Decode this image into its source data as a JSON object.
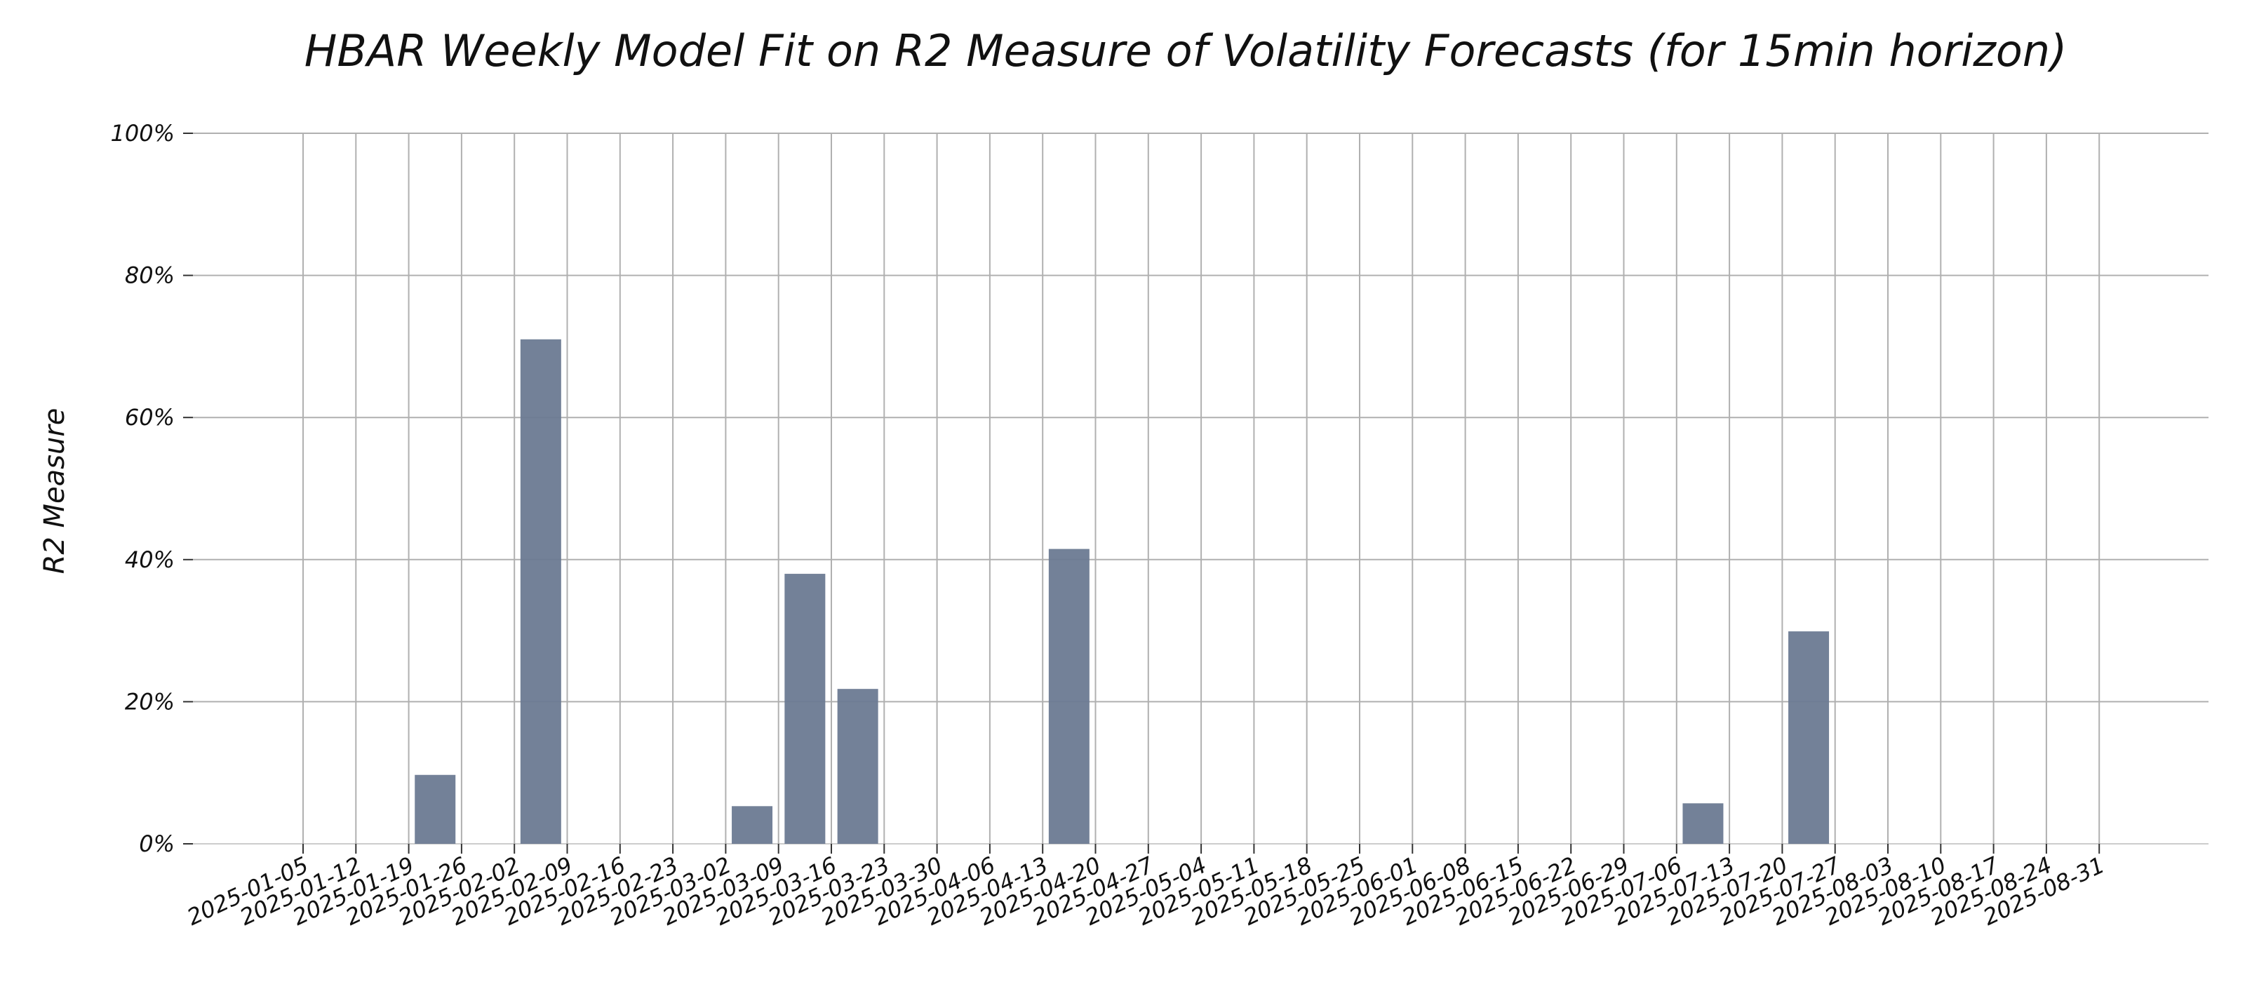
{
  "chart_data": {
    "type": "bar",
    "title": "HBAR Weekly Model Fit on R2 Measure of Volatility Forecasts (for 15min horizon)",
    "xlabel": "",
    "ylabel": "R2 Measure",
    "ylim": [
      0,
      100
    ],
    "y_ticks": [
      "0%",
      "20%",
      "40%",
      "60%",
      "80%",
      "100%"
    ],
    "grid": true,
    "bar_color": "#6b7a92",
    "categories": [
      "2025-01-05",
      "2025-01-12",
      "2025-01-19",
      "2025-01-26",
      "2025-02-02",
      "2025-02-09",
      "2025-02-16",
      "2025-02-23",
      "2025-03-02",
      "2025-03-09",
      "2025-03-16",
      "2025-03-23",
      "2025-03-30",
      "2025-04-06",
      "2025-04-13",
      "2025-04-20",
      "2025-04-27",
      "2025-05-04",
      "2025-05-11",
      "2025-05-18",
      "2025-05-25",
      "2025-06-01",
      "2025-06-08",
      "2025-06-15",
      "2025-06-22",
      "2025-06-29",
      "2025-07-06",
      "2025-07-13",
      "2025-07-20",
      "2025-07-27",
      "2025-08-03",
      "2025-08-10",
      "2025-08-17",
      "2025-08-24",
      "2025-08-31"
    ],
    "values": [
      0,
      0,
      0,
      9.7,
      0,
      71.0,
      0,
      0,
      0,
      5.3,
      38.0,
      21.8,
      0,
      0,
      0,
      41.5,
      0,
      0,
      0,
      0,
      0,
      0,
      0,
      0,
      0,
      0,
      0,
      5.7,
      0,
      29.9,
      0,
      0,
      0,
      0,
      0
    ]
  }
}
